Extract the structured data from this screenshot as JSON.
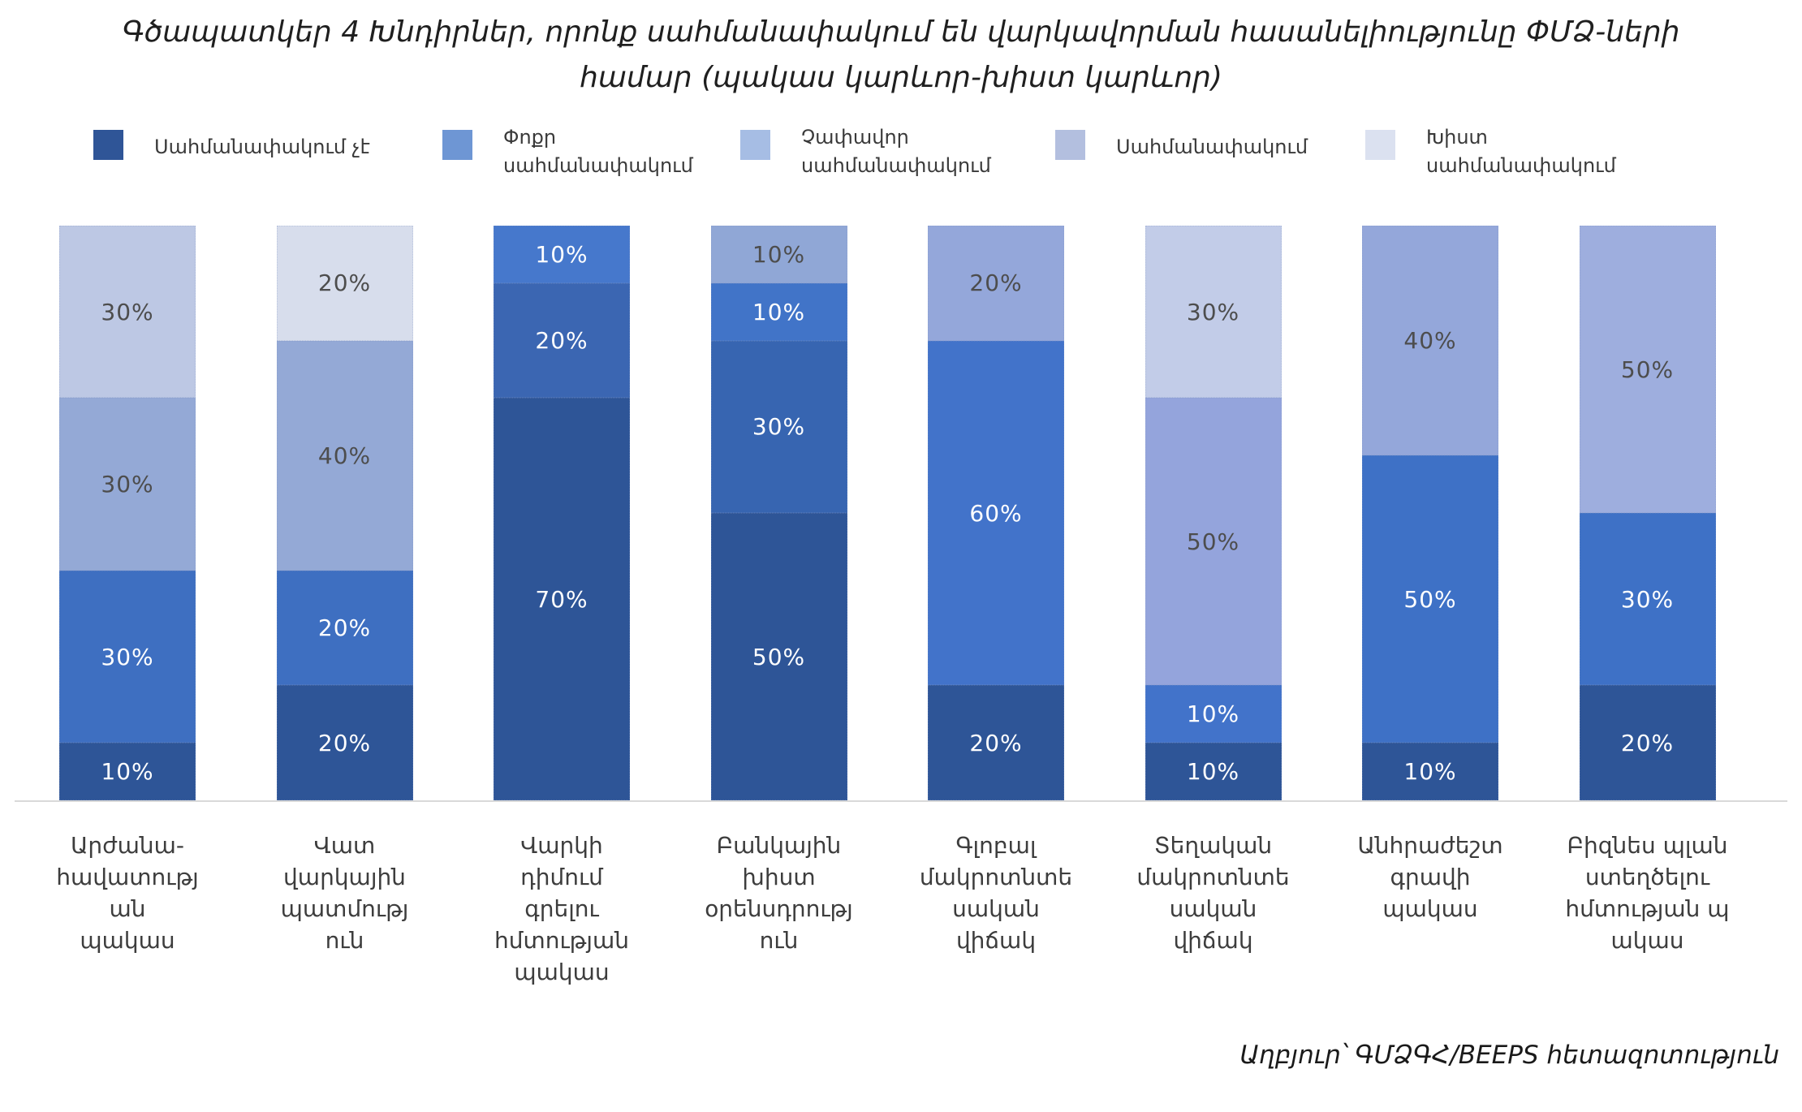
{
  "title": {
    "line1": "Գծապատկեր 4 Խնդիրներ, որոնք սահմանափակում են վարկավորման հասանելիությունը ՓՄՁ-ների",
    "line2": "համար (պակաս կարևոր-խիստ կարևոր)"
  },
  "legend": {
    "items": [
      {
        "lines": [
          "Սահմանափակում  չէ"
        ],
        "color": "#2F5597"
      },
      {
        "lines": [
          "Փոքր",
          "սահմանափակում"
        ],
        "color": "#6E96D4"
      },
      {
        "lines": [
          "Չափավոր",
          "սահմանափակում"
        ],
        "color": "#A6BDE4"
      },
      {
        "lines": [
          "Սահմանափակում"
        ],
        "color": "#B3BFDF"
      },
      {
        "lines": [
          "Խիստ",
          "սահմանափակում"
        ],
        "color": "#DBE1F0"
      }
    ]
  },
  "source": "Աղբյուր՝ ԳՄՁԳՀ/BEEPS  հետազոտություն",
  "chart_data": {
    "type": "bar",
    "subtype": "stacked-100-percent",
    "title": "Գծապատկեր 4 Խնդիրներ, որոնք սահմանափակում են վարկավորման հասանելիությունը ՓՄՁ-ների համար (պակաս կարևոր-խիստ կարևոր)",
    "unit": "%",
    "ylim": [
      0,
      100
    ],
    "grid": false,
    "legend_position": "top",
    "series_names": [
      "Սահմանափակում չէ",
      "Փոքր սահմանափակում",
      "Չափավոր սահմանափակում",
      "Սահմանափակում",
      "Խիստ սահմանափակում"
    ],
    "categories": [
      "Արժանա-հավատության պակաս",
      "Վատ վարկային պատմություն",
      "Վարկի դիմում գրելու հմտության պակաս",
      "Բանկային խիստ օրենսդրություն",
      "Գլոբալ մակրոտնտեսական վիճակ",
      "Տեղական մակրոտնտեսական վիճակ",
      "Անհրաժեշտ գրավի պակաս",
      "Բիզնես պլան ստեղծելու հմտության պակաս"
    ],
    "series": [
      {
        "name": "Սահմանափակում չէ",
        "color": "#2E5597",
        "values": [
          10,
          20,
          70,
          50,
          20,
          10,
          10,
          20
        ]
      },
      {
        "name": "Փոքր սահմանափակում",
        "color": "#4472C4",
        "values": [
          30,
          20,
          20,
          30,
          60,
          10,
          50,
          30
        ]
      },
      {
        "name": "Չափավոր սահմանափակում",
        "color": "#8FAADC",
        "values": [
          30,
          40,
          10,
          10,
          20,
          50,
          40,
          50
        ]
      },
      {
        "name": "Սահմանափակում",
        "color": "#B4C7E7",
        "values": [
          30,
          0,
          0,
          10,
          0,
          30,
          0,
          0
        ]
      },
      {
        "name": "Խիստ սահմանափակում",
        "color": "#D9E2F3",
        "values": [
          0,
          20,
          0,
          0,
          0,
          0,
          0,
          0
        ]
      }
    ],
    "bars": [
      {
        "category_lines": [
          "Արժանա-",
          "հավատությ",
          "ան",
          "պակաս"
        ],
        "segments": [
          {
            "series": 0,
            "value": 10,
            "label": "10%",
            "color": "#2E5597",
            "label_color": "#FFFFFF"
          },
          {
            "series": 1,
            "value": 30,
            "label": "30%",
            "color": "#3E6FC1",
            "label_color": "#FFFFFF"
          },
          {
            "series": 2,
            "value": 30,
            "label": "30%",
            "color": "#94A9D6",
            "label_color": "#4D4D4D"
          },
          {
            "series": 3,
            "value": 30,
            "label": "30%",
            "color": "#BDC8E4",
            "label_color": "#4D4D4D"
          }
        ]
      },
      {
        "category_lines": [
          "Վատ",
          "վարկային",
          "պատմությ",
          "ուն"
        ],
        "segments": [
          {
            "series": 0,
            "value": 20,
            "label": "20%",
            "color": "#2E5597",
            "label_color": "#FFFFFF"
          },
          {
            "series": 1,
            "value": 20,
            "label": "20%",
            "color": "#3E6FC1",
            "label_color": "#FFFFFF"
          },
          {
            "series": 2,
            "value": 40,
            "label": "40%",
            "color": "#94A9D6",
            "label_color": "#4D4D4D"
          },
          {
            "series": 4,
            "value": 20,
            "label": "20%",
            "color": "#D7DDEC",
            "label_color": "#4D4D4D"
          }
        ]
      },
      {
        "category_lines": [
          "Վարկի",
          "դիմում",
          "գրելու",
          "հմտության",
          "պակաս"
        ],
        "segments": [
          {
            "series": 0,
            "value": 70,
            "label": "70%",
            "color": "#2E5597",
            "label_color": "#FFFFFF"
          },
          {
            "series": 1,
            "value": 20,
            "label": "20%",
            "color": "#3B66B2",
            "label_color": "#FFFFFF"
          },
          {
            "series": 2,
            "value": 10,
            "label": "10%",
            "color": "#4678CC",
            "label_color": "#FFFFFF"
          }
        ]
      },
      {
        "category_lines": [
          "Բանկային",
          "խիստ",
          "օրենսդրությ",
          "ուն"
        ],
        "segments": [
          {
            "series": 0,
            "value": 50,
            "label": "50%",
            "color": "#2E5597",
            "label_color": "#FFFFFF"
          },
          {
            "series": 1,
            "value": 30,
            "label": "30%",
            "color": "#3765B1",
            "label_color": "#FFFFFF"
          },
          {
            "series": 2,
            "value": 10,
            "label": "10%",
            "color": "#4174C8",
            "label_color": "#FFFFFF"
          },
          {
            "series": 3,
            "value": 10,
            "label": "10%",
            "color": "#90A7D6",
            "label_color": "#4D4D4D"
          }
        ]
      },
      {
        "category_lines": [
          "Գլոբալ",
          "մակրոտնտե",
          "սական",
          "վիճակ"
        ],
        "segments": [
          {
            "series": 0,
            "value": 20,
            "label": "20%",
            "color": "#2E5597",
            "label_color": "#FFFFFF"
          },
          {
            "series": 1,
            "value": 60,
            "label": "60%",
            "color": "#4273CA",
            "label_color": "#FFFFFF"
          },
          {
            "series": 2,
            "value": 20,
            "label": "20%",
            "color": "#94A7DA",
            "label_color": "#4D4D4D"
          }
        ]
      },
      {
        "category_lines": [
          "Տեղական",
          "մակրոտնտե",
          "սական",
          "վիճակ"
        ],
        "segments": [
          {
            "series": 0,
            "value": 10,
            "label": "10%",
            "color": "#2E5597",
            "label_color": "#FFFFFF"
          },
          {
            "series": 1,
            "value": 10,
            "label": "10%",
            "color": "#4273CA",
            "label_color": "#FFFFFF"
          },
          {
            "series": 2,
            "value": 50,
            "label": "50%",
            "color": "#94A4DC",
            "label_color": "#4D4D4D"
          },
          {
            "series": 3,
            "value": 30,
            "label": "30%",
            "color": "#C2CCE8",
            "label_color": "#4D4D4D"
          }
        ]
      },
      {
        "category_lines": [
          "Անհրաժեշտ",
          "գրավի",
          "պակաս"
        ],
        "segments": [
          {
            "series": 0,
            "value": 10,
            "label": "10%",
            "color": "#2E5597",
            "label_color": "#FFFFFF"
          },
          {
            "series": 1,
            "value": 50,
            "label": "50%",
            "color": "#3E71C6",
            "label_color": "#FFFFFF"
          },
          {
            "series": 2,
            "value": 40,
            "label": "40%",
            "color": "#94A7DA",
            "label_color": "#4D4D4D"
          }
        ]
      },
      {
        "category_lines": [
          "Բիզնես պլան",
          "ստեղծելու",
          "հմտության պ",
          "ակաս"
        ],
        "segments": [
          {
            "series": 0,
            "value": 20,
            "label": "20%",
            "color": "#2E5597",
            "label_color": "#FFFFFF"
          },
          {
            "series": 1,
            "value": 30,
            "label": "30%",
            "color": "#3E71C6",
            "label_color": "#FFFFFF"
          },
          {
            "series": 2,
            "value": 50,
            "label": "50%",
            "color": "#9EAEDE",
            "label_color": "#4D4D4D"
          }
        ]
      }
    ]
  }
}
